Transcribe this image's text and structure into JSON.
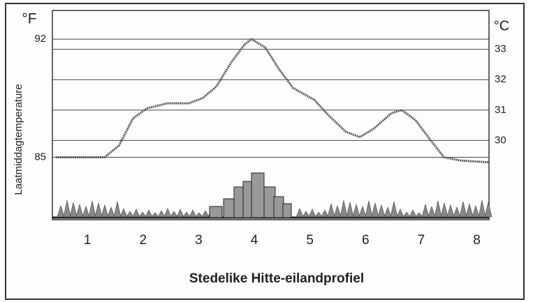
{
  "chart_data": {
    "type": "line",
    "title": "Stedelike Hitte-eilandprofiel",
    "y_label": "Laatmiddagtemperature",
    "y_unit": "°F",
    "y2_unit": "°C",
    "x": [
      0.43,
      1.31,
      1.57,
      1.82,
      2.07,
      2.44,
      2.82,
      3.07,
      3.32,
      3.58,
      3.83,
      3.95,
      4.2,
      4.45,
      4.7,
      5.08,
      5.33,
      5.65,
      5.9,
      6.15,
      6.46,
      6.65,
      6.9,
      7.15,
      7.41,
      7.72,
      8.22
    ],
    "values": [
      85.0,
      85.0,
      85.7,
      87.3,
      87.9,
      88.2,
      88.2,
      88.5,
      89.2,
      90.6,
      91.7,
      92.0,
      91.5,
      90.2,
      89.1,
      88.4,
      87.5,
      86.5,
      86.2,
      86.7,
      87.6,
      87.8,
      87.2,
      86.1,
      85.0,
      84.8,
      84.7
    ],
    "color": "#555555",
    "xlim": [
      0.37,
      8.22
    ],
    "xticks": [
      1,
      2,
      3,
      4,
      5,
      6,
      7,
      8
    ],
    "ylim": [
      81.3,
      93.7
    ],
    "yticks": [
      85,
      92
    ],
    "y2lim": [
      27.39,
      34.28
    ],
    "y2ticks": [
      30,
      31,
      32,
      33
    ],
    "grid": true
  }
}
